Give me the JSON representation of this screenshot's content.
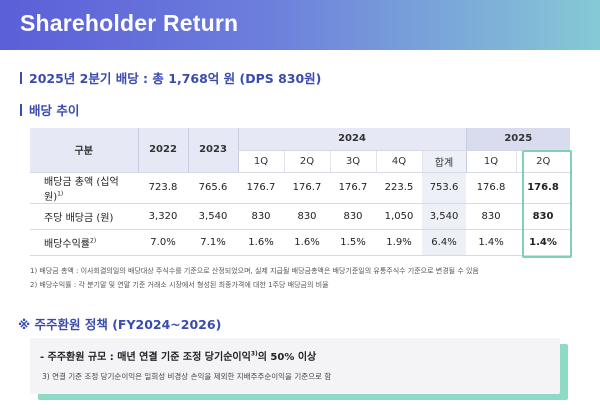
{
  "banner": {
    "title": "Shareholder Return"
  },
  "summary": {
    "heading": "2025년 2분기 배당 : 총 1,768억 원 (DPS 830원)"
  },
  "trend": {
    "heading": "배당 추이"
  },
  "table": {
    "col_label": "구분",
    "years": [
      "2022",
      "2023"
    ],
    "group_2024": "2024",
    "group_2025": "2025",
    "sub_2024": [
      "1Q",
      "2Q",
      "3Q",
      "4Q",
      "합계"
    ],
    "sub_2025": [
      "1Q",
      "2Q"
    ],
    "rows": [
      {
        "label": "배당금 총액 (십억 원)",
        "note": "1)",
        "values": [
          "723.8",
          "765.6",
          "176.7",
          "176.7",
          "176.7",
          "223.5",
          "753.6",
          "176.8",
          "176.8"
        ]
      },
      {
        "label": "주당 배당금 (원)",
        "note": "",
        "values": [
          "3,320",
          "3,540",
          "830",
          "830",
          "830",
          "1,050",
          "3,540",
          "830",
          "830"
        ]
      },
      {
        "label": "배당수익률",
        "note": "2)",
        "values": [
          "7.0%",
          "7.1%",
          "1.6%",
          "1.6%",
          "1.5%",
          "1.9%",
          "6.4%",
          "1.4%",
          "1.4%"
        ]
      }
    ],
    "highlight_color": "#7fd1b2"
  },
  "footnotes": [
    "1) 배당금 총액 : 이사회결의일의 배당대상 주식수를 기준으로 산정되었으며, 실제 지급될 배당금총액은 배당기준일의 유통주식수 기준으로 변경될 수 있음",
    "2) 배당수익률 : 각 분기말 및 연말 기준 거래소 시장에서 형성된 최종가격에 대한 1주당 배당금의 비율"
  ],
  "policy": {
    "title": "※ 주주환원 정책 (FY2024~2026)",
    "line1": "- 주주환원 규모 : 매년 연결 기준 조정 당기순이익",
    "line1_sup": "3)",
    "line1_tail": "의 50% 이상",
    "line2": "3) 연결 기준 조정 당기순이익은 일회성 비경상 손익을 제외한 지배주주순이익을 기준으로 함"
  }
}
